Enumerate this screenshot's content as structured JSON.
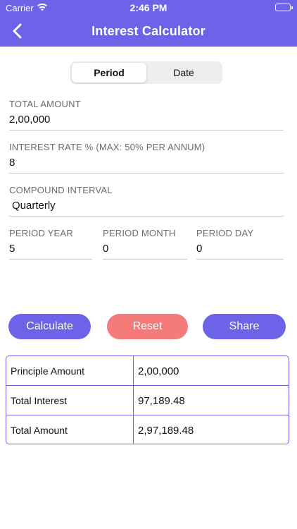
{
  "status_bar": {
    "carrier": "Carrier",
    "time": "2:46 PM"
  },
  "header": {
    "title": "Interest Calculator"
  },
  "segment": {
    "options": [
      "Period",
      "Date"
    ],
    "selected": "Period"
  },
  "fields": {
    "total_amount": {
      "label": "TOTAL AMOUNT",
      "value": "2,00,000"
    },
    "interest_rate": {
      "label": "INTEREST RATE % (MAX: 50% PER ANNUM)",
      "value": "8"
    },
    "compound_interval": {
      "label": "COMPOUND INTERVAL",
      "value": "Quarterly"
    },
    "period_year": {
      "label": "PERIOD YEAR",
      "value": "5"
    },
    "period_month": {
      "label": "PERIOD MONTH",
      "value": "0"
    },
    "period_day": {
      "label": "PERIOD DAY",
      "value": "0"
    }
  },
  "buttons": {
    "calculate": "Calculate",
    "reset": "Reset",
    "share": "Share"
  },
  "results": [
    {
      "label": "Principle Amount",
      "value": "2,00,000"
    },
    {
      "label": "Total Interest",
      "value": "97,189.48"
    },
    {
      "label": "Total Amount",
      "value": "2,97,189.48"
    }
  ],
  "colors": {
    "accent": "#6c63e8",
    "reset": "#f57a7a",
    "border": "#c9c9c9"
  }
}
